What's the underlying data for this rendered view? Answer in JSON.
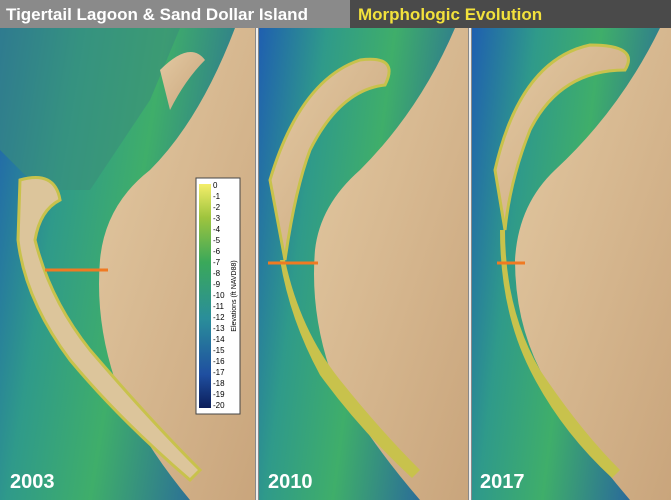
{
  "header": {
    "title": "Tigertail Lagoon & Sand Dollar Island",
    "subtitle": "Morphologic Evolution"
  },
  "panels": [
    {
      "year": "2003"
    },
    {
      "year": "2010"
    },
    {
      "year": "2017"
    }
  ],
  "legend": {
    "label": "Elevations (ft NAVD88)",
    "ticks": [
      0,
      -1,
      -2,
      -3,
      -4,
      -5,
      -6,
      -7,
      -8,
      -9,
      -10,
      -11,
      -12,
      -13,
      -14,
      -15,
      -16,
      -17,
      -18,
      -19,
      -20
    ]
  }
}
